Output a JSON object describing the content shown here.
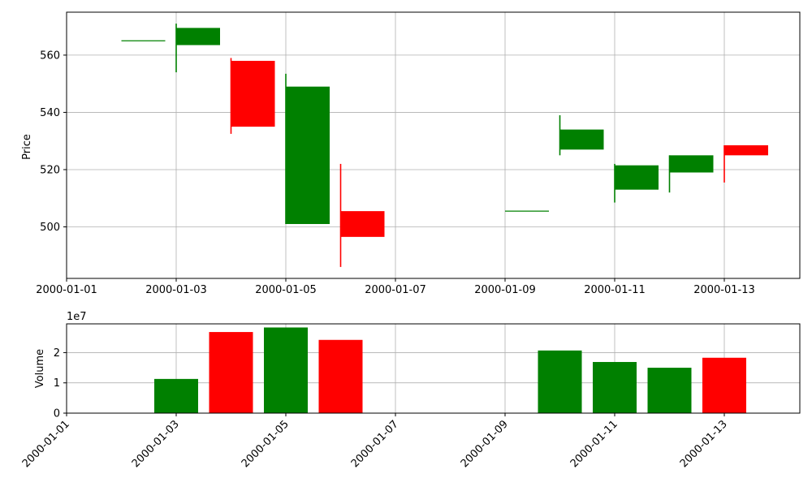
{
  "chart_data": [
    {
      "type": "candlestick",
      "ylabel": "Price",
      "xlabel": "",
      "title": "",
      "grid": true,
      "ylim": [
        482,
        575
      ],
      "xlim": [
        "2000-01-01",
        "2000-01-14"
      ],
      "yticks": [
        500,
        520,
        540,
        560
      ],
      "xticks": [
        "2000-01-01",
        "2000-01-03",
        "2000-01-05",
        "2000-01-07",
        "2000-01-09",
        "2000-01-11",
        "2000-01-13"
      ],
      "colors": {
        "up": "#008000",
        "down": "#ff0000",
        "grid": "#b0b0b0"
      },
      "candles": [
        {
          "date": "2000-01-02",
          "open": 565,
          "high": 565,
          "low": 565,
          "close": 565
        },
        {
          "date": "2000-01-03",
          "open": 563.5,
          "high": 571,
          "low": 554,
          "close": 569.5
        },
        {
          "date": "2000-01-04",
          "open": 558,
          "high": 559,
          "low": 532.5,
          "close": 535
        },
        {
          "date": "2000-01-05",
          "open": 501,
          "high": 553.5,
          "low": 501,
          "close": 549
        },
        {
          "date": "2000-01-06",
          "open": 505.5,
          "high": 522,
          "low": 486,
          "close": 496.5
        },
        {
          "date": "2000-01-09",
          "open": 505.5,
          "high": 505.5,
          "low": 505.5,
          "close": 505.5
        },
        {
          "date": "2000-01-10",
          "open": 527,
          "high": 539,
          "low": 525,
          "close": 534
        },
        {
          "date": "2000-01-11",
          "open": 513,
          "high": 522,
          "low": 508.5,
          "close": 521.5
        },
        {
          "date": "2000-01-12",
          "open": 519,
          "high": 525,
          "low": 512,
          "close": 525
        },
        {
          "date": "2000-01-13",
          "open": 528.5,
          "high": 528.5,
          "low": 515.5,
          "close": 525
        }
      ]
    },
    {
      "type": "bar",
      "ylabel": "Volume",
      "xlabel": "",
      "title": "",
      "grid": true,
      "offset_text": "1e7",
      "ylim": [
        0,
        2.95
      ],
      "yticks": [
        0,
        1,
        2
      ],
      "xlim": [
        "2000-01-01",
        "2000-01-14"
      ],
      "xticks": [
        "2000-01-01",
        "2000-01-03",
        "2000-01-05",
        "2000-01-07",
        "2000-01-09",
        "2000-01-11",
        "2000-01-13"
      ],
      "bars": [
        {
          "date": "2000-01-03",
          "value": 1.13,
          "color": "#008000"
        },
        {
          "date": "2000-01-04",
          "value": 2.68,
          "color": "#ff0000"
        },
        {
          "date": "2000-01-05",
          "value": 2.83,
          "color": "#008000"
        },
        {
          "date": "2000-01-06",
          "value": 2.42,
          "color": "#ff0000"
        },
        {
          "date": "2000-01-10",
          "value": 2.07,
          "color": "#008000"
        },
        {
          "date": "2000-01-11",
          "value": 1.69,
          "color": "#008000"
        },
        {
          "date": "2000-01-12",
          "value": 1.5,
          "color": "#008000"
        },
        {
          "date": "2000-01-13",
          "value": 1.83,
          "color": "#ff0000"
        }
      ]
    }
  ]
}
